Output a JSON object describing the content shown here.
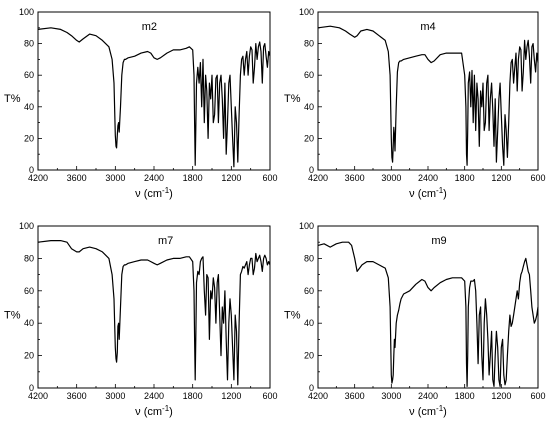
{
  "colors": {
    "line": "#000000",
    "background": "#ffffff"
  },
  "chart_data": [
    {
      "type": "line",
      "title": "m2",
      "xlabel": "ν (cm",
      "xlabel_sup": "-1",
      "xlabel_end": ")",
      "ylabel": "T%",
      "xlim": [
        4200,
        600
      ],
      "ylim": [
        0,
        100
      ],
      "x_reversed": true,
      "xticks": [
        4200,
        3600,
        3000,
        2400,
        1800,
        1200,
        600
      ],
      "yticks": [
        0,
        20,
        40,
        60,
        80,
        100
      ],
      "grid": false,
      "x": [
        4200,
        4000,
        3850,
        3750,
        3680,
        3600,
        3560,
        3500,
        3400,
        3300,
        3200,
        3100,
        3050,
        3020,
        3000,
        2990,
        2980,
        2970,
        2960,
        2950,
        2940,
        2920,
        2900,
        2880,
        2860,
        2840,
        2800,
        2700,
        2600,
        2500,
        2450,
        2400,
        2350,
        2300,
        2200,
        2100,
        2000,
        1900,
        1850,
        1800,
        1780,
        1770,
        1760,
        1750,
        1740,
        1720,
        1700,
        1680,
        1660,
        1640,
        1620,
        1600,
        1580,
        1560,
        1540,
        1520,
        1500,
        1480,
        1460,
        1440,
        1420,
        1400,
        1380,
        1360,
        1340,
        1320,
        1300,
        1280,
        1260,
        1240,
        1220,
        1200,
        1180,
        1160,
        1140,
        1120,
        1100,
        1080,
        1060,
        1040,
        1020,
        1000,
        980,
        960,
        940,
        920,
        900,
        880,
        860,
        840,
        820,
        800,
        780,
        760,
        740,
        720,
        700,
        680,
        660,
        640,
        620,
        600
      ],
      "y": [
        89,
        90,
        89,
        87,
        85,
        82,
        81,
        83,
        86,
        85,
        82,
        78,
        70,
        55,
        22,
        15,
        14,
        22,
        28,
        30,
        24,
        40,
        60,
        68,
        70,
        70,
        71,
        72,
        74,
        75,
        74,
        71,
        70,
        71,
        74,
        76,
        76,
        77,
        78,
        76,
        60,
        30,
        3,
        30,
        55,
        65,
        55,
        68,
        40,
        70,
        30,
        60,
        50,
        20,
        55,
        45,
        60,
        30,
        35,
        58,
        60,
        30,
        55,
        60,
        45,
        20,
        55,
        10,
        30,
        55,
        60,
        40,
        20,
        2,
        40,
        30,
        5,
        35,
        60,
        70,
        72,
        60,
        70,
        75,
        60,
        72,
        78,
        76,
        55,
        65,
        80,
        70,
        78,
        81,
        75,
        55,
        78,
        80,
        72,
        65,
        75,
        72
      ]
    },
    {
      "type": "line",
      "title": "m4",
      "xlabel": "ν (cm",
      "xlabel_sup": "-1",
      "xlabel_end": ")",
      "ylabel": "T%",
      "xlim": [
        4200,
        600
      ],
      "ylim": [
        0,
        100
      ],
      "x_reversed": true,
      "xticks": [
        4200,
        3600,
        3000,
        2400,
        1800,
        1200,
        600
      ],
      "yticks": [
        0,
        20,
        40,
        60,
        80,
        100
      ],
      "grid": false,
      "x": [
        4200,
        4000,
        3850,
        3750,
        3680,
        3600,
        3560,
        3500,
        3400,
        3300,
        3200,
        3100,
        3050,
        3020,
        3000,
        2990,
        2980,
        2970,
        2960,
        2950,
        2940,
        2920,
        2900,
        2880,
        2860,
        2840,
        2800,
        2700,
        2600,
        2500,
        2450,
        2400,
        2350,
        2300,
        2200,
        2100,
        2000,
        1900,
        1850,
        1800,
        1780,
        1770,
        1760,
        1750,
        1740,
        1720,
        1700,
        1680,
        1660,
        1640,
        1620,
        1600,
        1580,
        1560,
        1540,
        1520,
        1500,
        1480,
        1460,
        1440,
        1420,
        1400,
        1380,
        1360,
        1340,
        1320,
        1300,
        1280,
        1260,
        1240,
        1220,
        1200,
        1180,
        1160,
        1140,
        1120,
        1100,
        1080,
        1060,
        1040,
        1020,
        1000,
        980,
        960,
        940,
        920,
        900,
        880,
        860,
        840,
        820,
        800,
        780,
        760,
        740,
        720,
        700,
        680,
        660,
        640,
        620,
        600
      ],
      "y": [
        90,
        91,
        90,
        88,
        86,
        84,
        85,
        88,
        89,
        88,
        85,
        82,
        75,
        60,
        20,
        8,
        5,
        15,
        27,
        22,
        12,
        40,
        62,
        68,
        69,
        69,
        70,
        71,
        72,
        73,
        73,
        70,
        68,
        69,
        73,
        74,
        74,
        74,
        74,
        60,
        40,
        10,
        3,
        25,
        55,
        62,
        40,
        63,
        30,
        60,
        25,
        55,
        45,
        15,
        50,
        40,
        55,
        25,
        30,
        55,
        60,
        25,
        45,
        55,
        38,
        15,
        45,
        5,
        25,
        45,
        55,
        35,
        15,
        3,
        35,
        25,
        8,
        30,
        55,
        68,
        70,
        55,
        65,
        74,
        50,
        70,
        78,
        76,
        50,
        62,
        82,
        70,
        78,
        82,
        72,
        55,
        78,
        80,
        70,
        62,
        74,
        68
      ]
    },
    {
      "type": "line",
      "title": "m7",
      "xlabel": "ν (cm",
      "xlabel_sup": "-1",
      "xlabel_end": ")",
      "ylabel": "T%",
      "xlim": [
        4200,
        600
      ],
      "ylim": [
        0,
        100
      ],
      "x_reversed": true,
      "xticks": [
        4200,
        3600,
        3000,
        2400,
        1800,
        1200,
        600
      ],
      "yticks": [
        0,
        20,
        40,
        60,
        80,
        100
      ],
      "grid": false,
      "x": [
        4200,
        4000,
        3850,
        3750,
        3680,
        3600,
        3560,
        3500,
        3400,
        3300,
        3200,
        3100,
        3050,
        3020,
        3000,
        2990,
        2980,
        2970,
        2960,
        2950,
        2940,
        2920,
        2900,
        2880,
        2860,
        2840,
        2800,
        2700,
        2600,
        2500,
        2450,
        2400,
        2350,
        2300,
        2200,
        2100,
        2000,
        1900,
        1850,
        1800,
        1780,
        1770,
        1760,
        1750,
        1740,
        1720,
        1700,
        1680,
        1660,
        1640,
        1620,
        1600,
        1580,
        1560,
        1540,
        1520,
        1500,
        1480,
        1460,
        1440,
        1420,
        1400,
        1380,
        1360,
        1340,
        1320,
        1300,
        1280,
        1260,
        1240,
        1220,
        1200,
        1180,
        1160,
        1140,
        1120,
        1100,
        1080,
        1060,
        1040,
        1020,
        1000,
        980,
        960,
        940,
        920,
        900,
        880,
        860,
        840,
        820,
        800,
        780,
        760,
        740,
        720,
        700,
        680,
        660,
        640,
        620,
        600
      ],
      "y": [
        90,
        91,
        91,
        90,
        86,
        84,
        84,
        86,
        87,
        86,
        84,
        80,
        70,
        55,
        25,
        18,
        16,
        22,
        38,
        40,
        30,
        50,
        70,
        75,
        76,
        76,
        77,
        78,
        79,
        79,
        78,
        77,
        76,
        77,
        79,
        80,
        80,
        81,
        81,
        78,
        60,
        30,
        5,
        35,
        65,
        72,
        70,
        78,
        80,
        81,
        60,
        45,
        70,
        68,
        30,
        60,
        55,
        68,
        62,
        40,
        65,
        70,
        45,
        20,
        50,
        40,
        60,
        30,
        5,
        40,
        55,
        45,
        25,
        5,
        45,
        35,
        2,
        40,
        70,
        72,
        75,
        74,
        76,
        78,
        70,
        76,
        80,
        80,
        70,
        74,
        83,
        78,
        80,
        82,
        78,
        72,
        80,
        82,
        80,
        76,
        78,
        76
      ]
    },
    {
      "type": "line",
      "title": "m9",
      "xlabel": "ν (cm",
      "xlabel_sup": "-1",
      "xlabel_end": ")",
      "ylabel": "T%",
      "xlim": [
        4200,
        600
      ],
      "ylim": [
        0,
        100
      ],
      "x_reversed": true,
      "xticks": [
        4200,
        3600,
        3000,
        2400,
        1800,
        1200,
        600
      ],
      "yticks": [
        0,
        20,
        40,
        60,
        80,
        100
      ],
      "grid": false,
      "x": [
        4200,
        4100,
        4000,
        3900,
        3800,
        3700,
        3650,
        3600,
        3560,
        3520,
        3480,
        3400,
        3300,
        3200,
        3100,
        3050,
        3020,
        3000,
        2990,
        2980,
        2970,
        2960,
        2950,
        2940,
        2920,
        2900,
        2880,
        2860,
        2840,
        2800,
        2700,
        2600,
        2500,
        2450,
        2400,
        2350,
        2300,
        2200,
        2100,
        2000,
        1900,
        1850,
        1800,
        1780,
        1770,
        1760,
        1750,
        1740,
        1720,
        1700,
        1680,
        1660,
        1640,
        1620,
        1600,
        1580,
        1560,
        1540,
        1520,
        1500,
        1480,
        1460,
        1440,
        1420,
        1400,
        1380,
        1360,
        1340,
        1320,
        1300,
        1280,
        1260,
        1240,
        1220,
        1200,
        1180,
        1160,
        1140,
        1120,
        1100,
        1080,
        1060,
        1040,
        1020,
        1000,
        980,
        960,
        940,
        920,
        900,
        880,
        860,
        840,
        820,
        800,
        780,
        760,
        740,
        720,
        700,
        680,
        660,
        640,
        620,
        600
      ],
      "y": [
        88,
        89,
        87,
        89,
        90,
        90,
        88,
        80,
        72,
        74,
        76,
        78,
        78,
        76,
        74,
        68,
        50,
        8,
        3,
        5,
        8,
        20,
        30,
        25,
        40,
        45,
        48,
        52,
        55,
        58,
        60,
        64,
        67,
        66,
        62,
        60,
        62,
        65,
        67,
        68,
        68,
        68,
        66,
        50,
        15,
        1,
        20,
        50,
        62,
        66,
        66,
        66,
        67,
        60,
        40,
        15,
        45,
        50,
        20,
        5,
        40,
        55,
        45,
        30,
        8,
        20,
        35,
        5,
        1,
        20,
        35,
        25,
        5,
        1,
        25,
        30,
        8,
        2,
        5,
        20,
        35,
        45,
        38,
        40,
        45,
        50,
        55,
        60,
        55,
        65,
        70,
        72,
        75,
        78,
        80,
        76,
        72,
        70,
        60,
        50,
        45,
        40,
        42,
        45,
        50
      ]
    }
  ]
}
